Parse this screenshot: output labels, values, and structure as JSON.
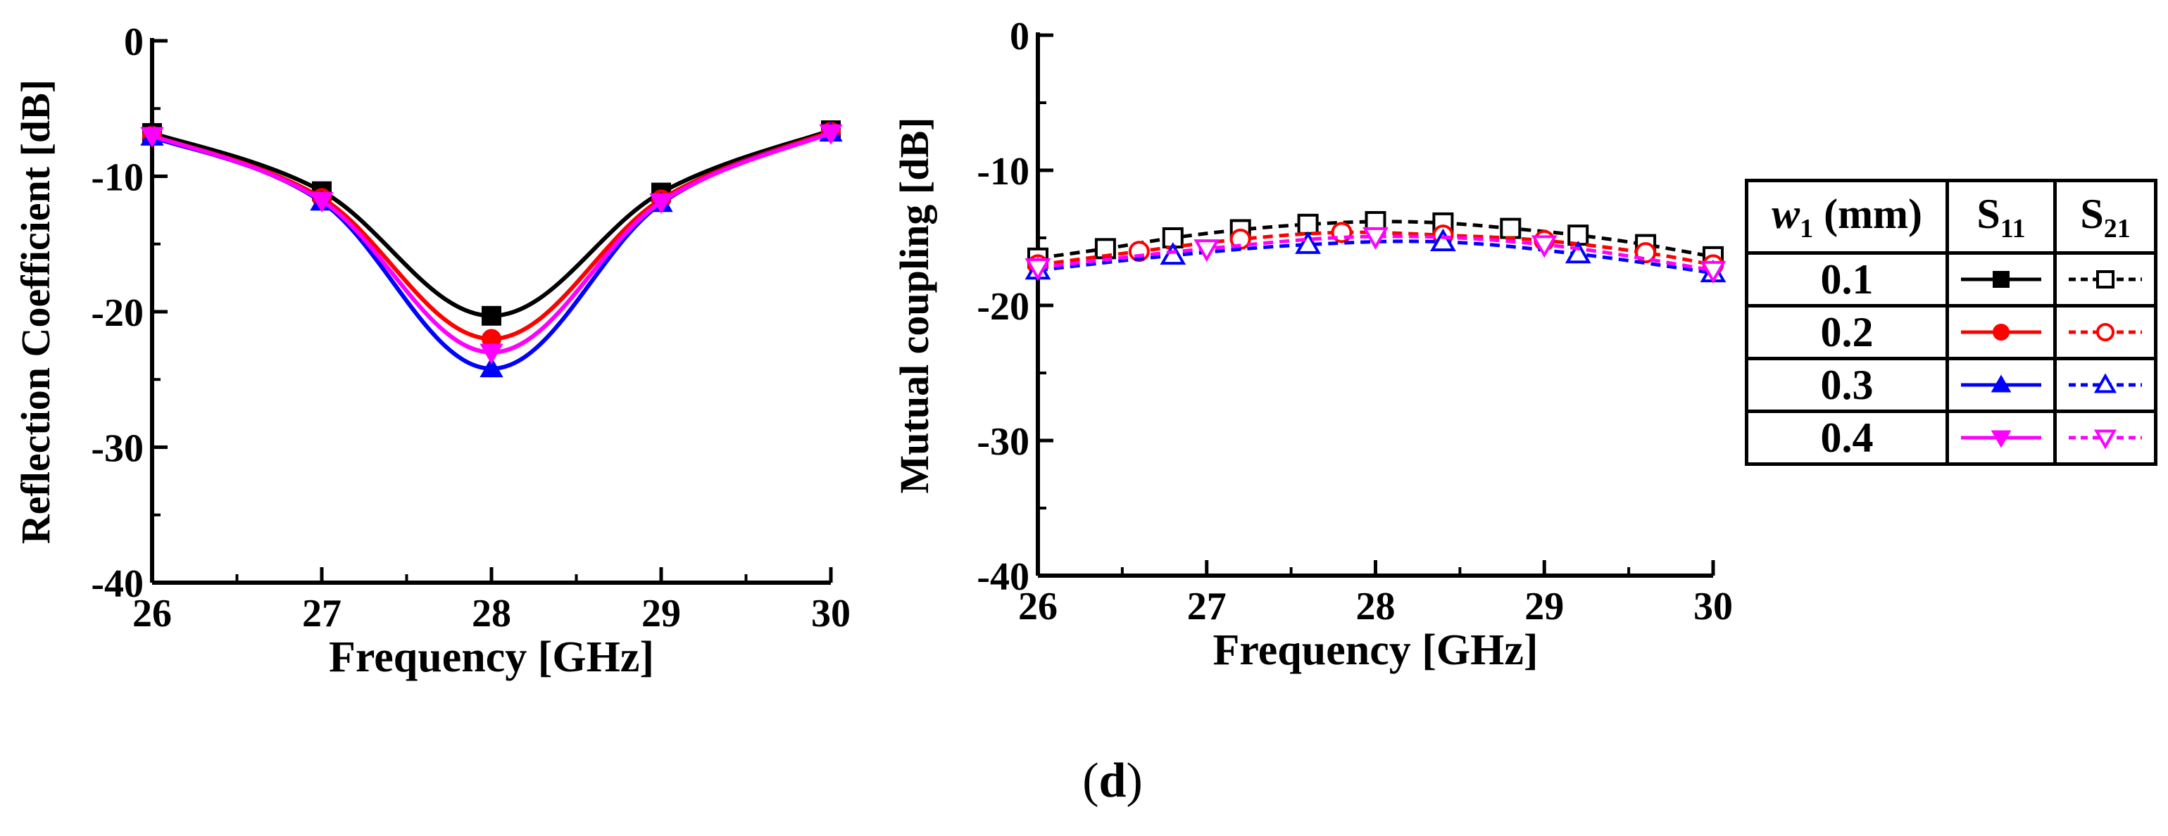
{
  "chart_data": [
    {
      "type": "line",
      "title": "",
      "xlabel": "Frequency [GHz]",
      "ylabel": "Reflection Coefficient [dB]",
      "xlim": [
        26,
        30
      ],
      "ylim": [
        -40,
        0
      ],
      "x_ticks": [
        "26",
        "27",
        "28",
        "29",
        "30"
      ],
      "y_ticks": [
        "0",
        "-10",
        "-20",
        "-30",
        "-40"
      ],
      "series": [
        {
          "name": "0.1",
          "color": "#000000",
          "marker": "square",
          "x": [
            26,
            27,
            28,
            29,
            30
          ],
          "values": [
            -6.8,
            -11.1,
            -20.3,
            -11.2,
            -6.6
          ]
        },
        {
          "name": "0.2",
          "color": "#ff0000",
          "marker": "circle",
          "x": [
            26,
            27,
            28,
            29,
            30
          ],
          "values": [
            -7.0,
            -11.6,
            -22.0,
            -11.7,
            -6.7
          ]
        },
        {
          "name": "0.3",
          "color": "#0000ff",
          "marker": "triangle-up",
          "x": [
            26,
            27,
            28,
            29,
            30
          ],
          "values": [
            -7.1,
            -11.9,
            -24.2,
            -12.0,
            -6.8
          ]
        },
        {
          "name": "0.4",
          "color": "#ff00ff",
          "marker": "triangle-down",
          "x": [
            26,
            27,
            28,
            29,
            30
          ],
          "values": [
            -7.0,
            -11.8,
            -23.0,
            -11.9,
            -6.8
          ]
        }
      ]
    },
    {
      "type": "line",
      "title": "",
      "xlabel": "Frequency [GHz]",
      "ylabel": "Mutual coupling [dB]",
      "xlim": [
        26,
        30
      ],
      "ylim": [
        -40,
        0
      ],
      "x_ticks": [
        "26",
        "27",
        "28",
        "29",
        "30"
      ],
      "y_ticks": [
        "0",
        "-10",
        "-20",
        "-30",
        "-40"
      ],
      "series": [
        {
          "name": "0.1",
          "color": "#000000",
          "marker": "square-open",
          "x": [
            26,
            26.4,
            26.8,
            27.2,
            27.6,
            28,
            28.4,
            28.8,
            29.2,
            29.6,
            30
          ],
          "values": [
            -16.5,
            -15.8,
            -15.0,
            -14.4,
            -14.0,
            -13.8,
            -13.9,
            -14.3,
            -14.8,
            -15.5,
            -16.4
          ]
        },
        {
          "name": "0.2",
          "color": "#ff0000",
          "marker": "circle-open",
          "x": [
            26,
            26.6,
            27.2,
            27.8,
            28.4,
            29,
            29.6,
            30
          ],
          "values": [
            -17.0,
            -16.0,
            -15.1,
            -14.6,
            -14.8,
            -15.2,
            -16.1,
            -17.0
          ]
        },
        {
          "name": "0.3",
          "color": "#0000ff",
          "marker": "triangle-up-open",
          "x": [
            26,
            26.8,
            27.6,
            28.4,
            29.2,
            30
          ],
          "values": [
            -17.4,
            -16.3,
            -15.5,
            -15.3,
            -16.2,
            -17.6
          ]
        },
        {
          "name": "0.4",
          "color": "#ff00ff",
          "marker": "triangle-down-open",
          "x": [
            26,
            27,
            28,
            29,
            30
          ],
          "values": [
            -17.2,
            -15.8,
            -14.9,
            -15.5,
            -17.4
          ]
        }
      ]
    }
  ],
  "legend": {
    "header_param": "w",
    "header_param_sub": "1",
    "header_unit": " (mm)",
    "header_s11": "S",
    "header_s11_sub": "11",
    "header_s21": "S",
    "header_s21_sub": "21",
    "rows": [
      "0.1",
      "0.2",
      "0.3",
      "0.4"
    ]
  },
  "caption": {
    "open": "(",
    "letter": "d",
    "close": ")"
  }
}
